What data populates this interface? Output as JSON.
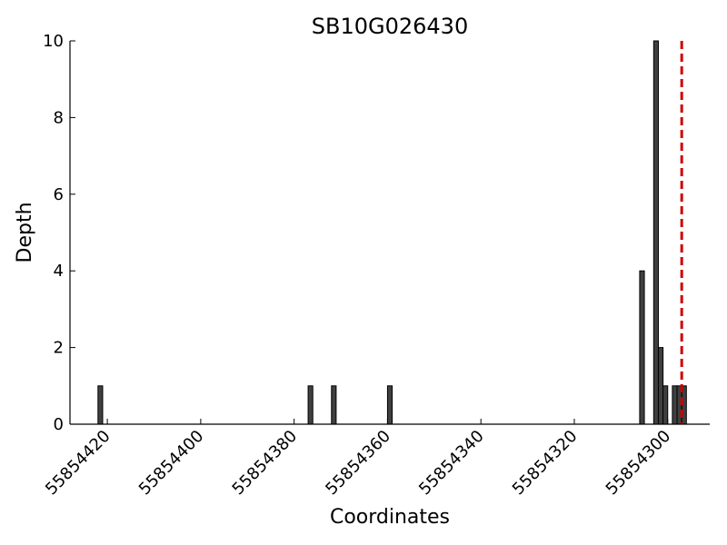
{
  "chart_data": {
    "type": "bar",
    "title": "SB10G026430",
    "xlabel": "Coordinates",
    "ylabel": "Depth",
    "xlim": [
      55854428,
      55854291
    ],
    "ylim": [
      0,
      10
    ],
    "x_inverted": true,
    "xticks": [
      55854420,
      55854400,
      55854380,
      55854360,
      55854340,
      55854320,
      55854300
    ],
    "xtick_labels": [
      "55854420",
      "55854400",
      "55854380",
      "55854360",
      "55854340",
      "55854320",
      "55854300"
    ],
    "yticks": [
      0,
      2,
      4,
      6,
      8,
      10
    ],
    "ytick_labels": [
      "0",
      "2",
      "4",
      "6",
      "8",
      "10"
    ],
    "bar_width": 1,
    "bars": [
      {
        "x": 55854421,
        "depth": 1
      },
      {
        "x": 55854376,
        "depth": 1
      },
      {
        "x": 55854371,
        "depth": 1
      },
      {
        "x": 55854359,
        "depth": 1
      },
      {
        "x": 55854305,
        "depth": 4
      },
      {
        "x": 55854302,
        "depth": 10
      },
      {
        "x": 55854301,
        "depth": 2
      },
      {
        "x": 55854300,
        "depth": 1
      },
      {
        "x": 55854298,
        "depth": 1
      },
      {
        "x": 55854297,
        "depth": 1
      },
      {
        "x": 55854296,
        "depth": 1
      }
    ],
    "marker_line": {
      "x": 55854297,
      "color": "#cc0000",
      "style": "dashed"
    },
    "bar_color": "#404040",
    "grid": false
  }
}
